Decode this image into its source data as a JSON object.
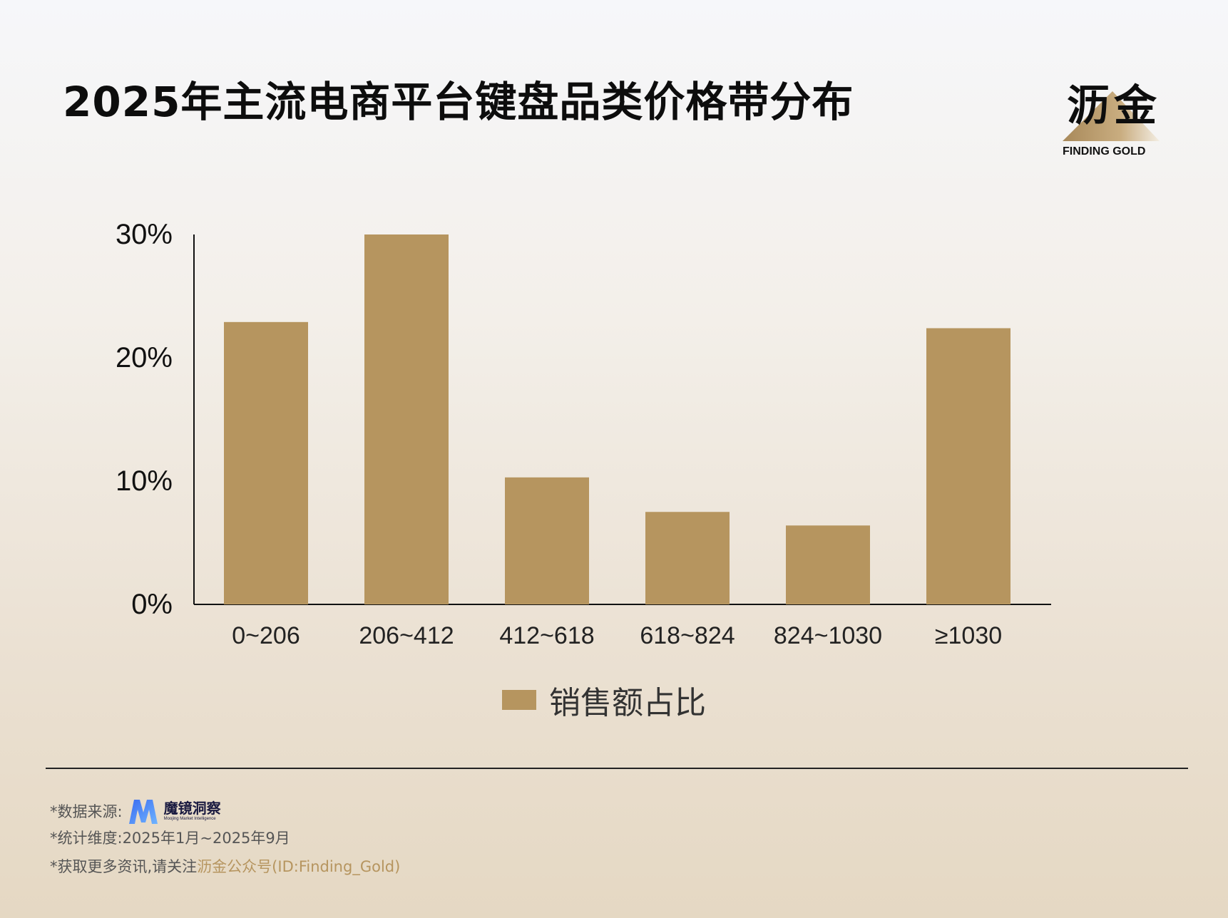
{
  "title": "2025年主流电商平台键盘品类价格带分布",
  "logo": {
    "name": "沥金",
    "sub": "FINDING GOLD"
  },
  "colors": {
    "bar": "#b6955f",
    "accent": "#b6955f"
  },
  "chart_data": {
    "type": "bar",
    "categories": [
      "0~206",
      "206~412",
      "412~618",
      "618~824",
      "824~1030",
      "≥1030"
    ],
    "series": [
      {
        "name": "销售额占比",
        "values": [
          22.9,
          30.0,
          10.3,
          7.5,
          6.4,
          22.4
        ]
      }
    ],
    "y_ticks": [
      "0%",
      "10%",
      "20%",
      "30%"
    ],
    "ylim": [
      0,
      30
    ],
    "legend": "bottom-center",
    "grid": false
  },
  "footer": {
    "source_label": "*数据来源:",
    "brand_name": "魔镜洞察",
    "brand_en": "Moojing Market Intelligence",
    "period": "*统计维度:2025年1月~2025年9月",
    "more_prefix": "*获取更多资讯,请关注",
    "more_highlight": "沥金公众号(ID:Finding_Gold)"
  }
}
